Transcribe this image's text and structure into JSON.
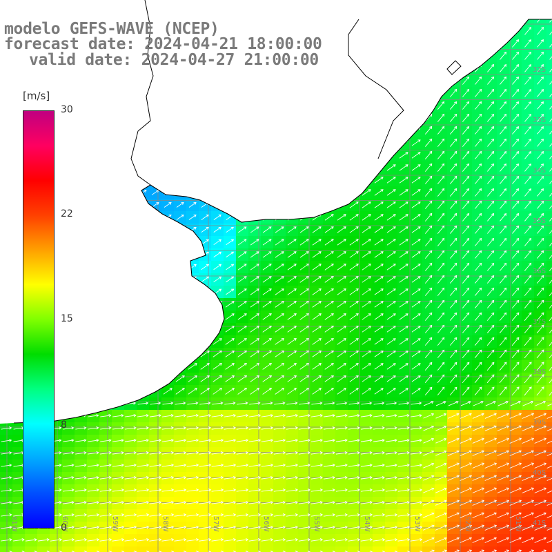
{
  "title": {
    "line1": "modelo GEFS-WAVE (NCEP)",
    "line2": "forecast date: 2024-04-21 18:00:00",
    "line3": "valid date: 2024-04-27 21:00:00"
  },
  "colorbar": {
    "unit": "[m/s]",
    "ticks": [
      "30",
      "22",
      "15",
      "8",
      "0"
    ],
    "tick_values": [
      30,
      22,
      15,
      8,
      0
    ],
    "colors": [
      "#0000ff",
      "#0050ff",
      "#00aaff",
      "#00ffff",
      "#00ff80",
      "#00dd00",
      "#80ff00",
      "#ffff00",
      "#ffa000",
      "#ff4000",
      "#ff0000",
      "#ff0060",
      "#c00080"
    ]
  },
  "map": {
    "lon_labels": [
      "61W",
      "60W",
      "59W",
      "58W",
      "57W",
      "56W",
      "55W",
      "54W",
      "53W",
      "52W",
      "51W"
    ],
    "lat_labels": [
      "32S",
      "33S",
      "34S",
      "35S",
      "36S",
      "37S",
      "38S",
      "39S",
      "40S",
      "41S"
    ],
    "land_color": "#ffffff",
    "coast_color": "#000000",
    "arrow_color": "#ffffff",
    "grid_color": "#888888"
  }
}
